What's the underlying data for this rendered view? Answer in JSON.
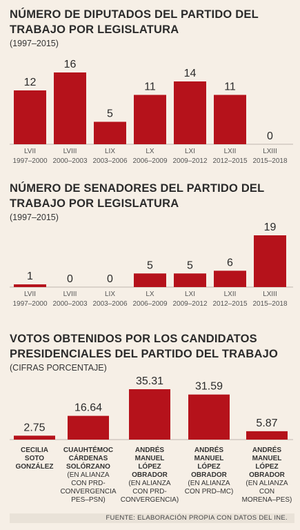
{
  "source": "FUENTE: ELABORACIÓN PROPIA CON DATOS DEL INE.",
  "colors": {
    "bar": "#b5121b",
    "background": "#f6efe6",
    "text": "#2b2b2b"
  },
  "chart_data": [
    {
      "type": "bar",
      "title": "NÚMERO DE DIPUTADOS DEL PARTIDO DEL TRABAJO POR LEGISLATURA",
      "subtitle": "(1997–2015)",
      "categories": [
        "LVII",
        "LVIII",
        "LIX",
        "LX",
        "LXI",
        "LXII",
        "LXIII"
      ],
      "periods": [
        "1997–2000",
        "2000–2003",
        "2003–2006",
        "2006–2009",
        "2009–2012",
        "2012–2015",
        "2015–2018"
      ],
      "values": [
        12,
        16,
        5,
        11,
        14,
        11,
        0
      ],
      "ylim": [
        0,
        16
      ],
      "grid": false
    },
    {
      "type": "bar",
      "title": "NÚMERO DE SENADORES DEL PARTIDO DEL TRABAJO POR LEGISLATURA",
      "subtitle": "(1997–2015)",
      "categories": [
        "LVII",
        "LVIII",
        "LIX",
        "LX",
        "LXI",
        "LXII",
        "LXIII"
      ],
      "periods": [
        "1997–2000",
        "2000–2003",
        "2003–2006",
        "2006–2009",
        "2009–2012",
        "2012–2015",
        "2015–2018"
      ],
      "values": [
        1,
        0,
        0,
        5,
        5,
        6,
        19
      ],
      "ylim": [
        0,
        19
      ],
      "grid": false
    },
    {
      "type": "bar",
      "title": "VOTOS OBTENIDOS POR LOS CANDIDATOS PRESIDENCIALES DEL PARTIDO DEL TRABAJO",
      "subtitle": "(CIFRAS PORCENTAJE)",
      "values": [
        2.75,
        16.64,
        35.31,
        31.59,
        5.87
      ],
      "labels": [
        "2.75",
        "16.64",
        "35.31",
        "31.59",
        "5.87"
      ],
      "candidates": [
        {
          "name": [
            "CECILIA",
            "SOTO",
            "GONZÁLEZ"
          ],
          "note": []
        },
        {
          "name": [
            "CUAUHTÉMOC",
            "CÁRDENAS",
            "SOLÓRZANO"
          ],
          "note": [
            "(EN ALIANZA",
            "CON PRD-",
            "CONVERGENCIA",
            "PES–PSN)"
          ]
        },
        {
          "name": [
            "ANDRÉS",
            "MANUEL",
            "LÓPEZ",
            "OBRADOR"
          ],
          "note": [
            "(EN ALIANZA",
            "CON PRD-",
            "CONVERGENCIA)"
          ]
        },
        {
          "name": [
            "ANDRÉS",
            "MANUEL",
            "LÓPEZ",
            "OBRADOR"
          ],
          "note": [
            "(EN ALIANZA",
            "CON PRD–MC)"
          ]
        },
        {
          "name": [
            "ANDRÉS",
            "MANUEL",
            "LÓPEZ",
            "OBRADOR"
          ],
          "note": [
            "(EN ALIANZA",
            "CON",
            "MORENA–PES)"
          ]
        }
      ],
      "ylim": [
        0,
        35.31
      ],
      "grid": false
    }
  ]
}
